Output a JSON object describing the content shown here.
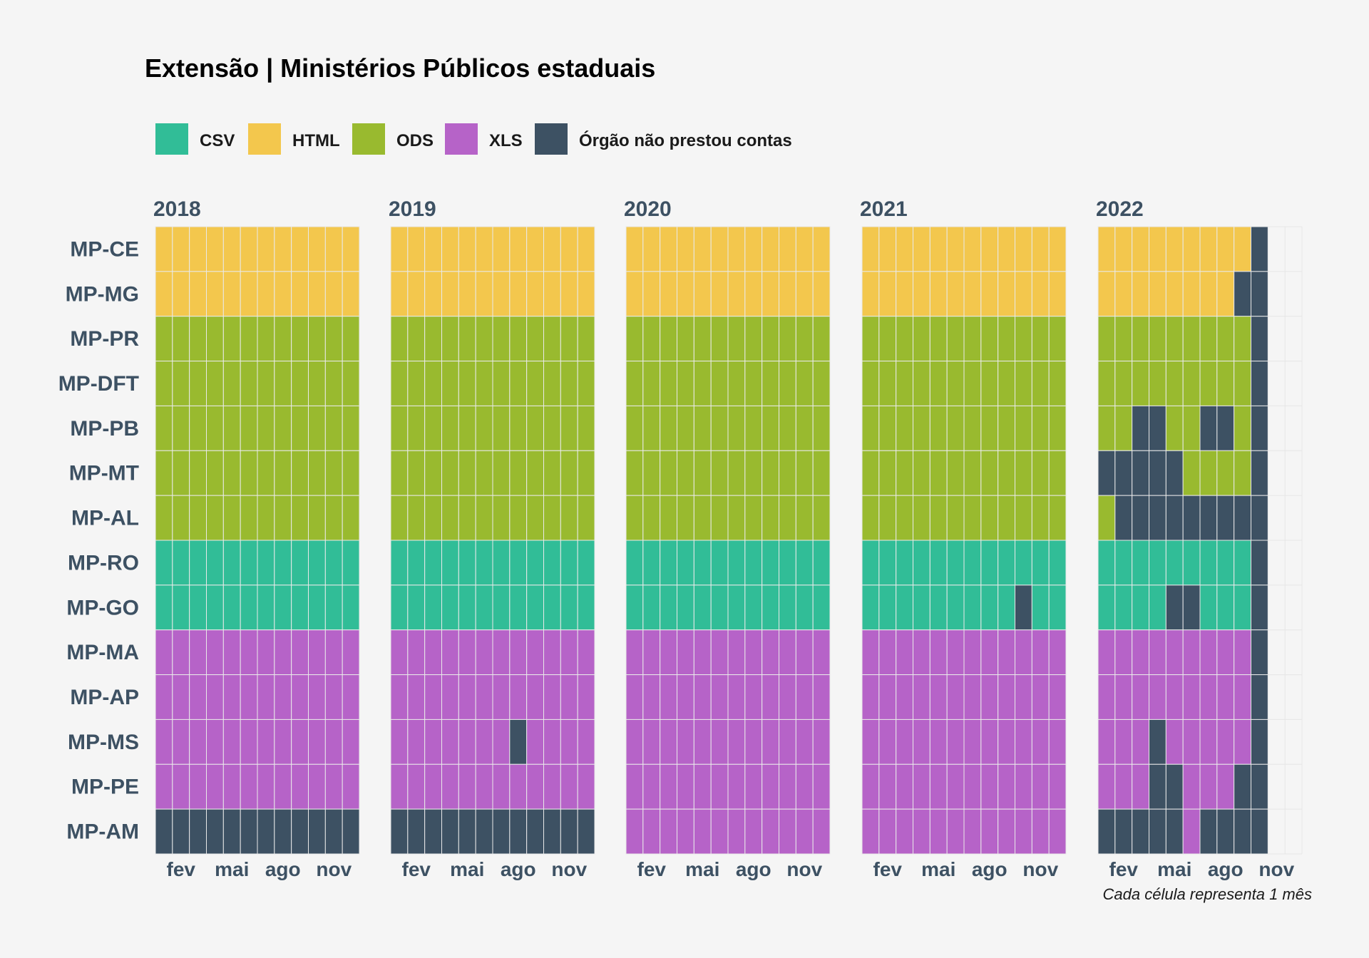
{
  "chart_data": {
    "type": "heatmap",
    "title": "Extensão | Ministérios Públicos estaduais",
    "caption": "Cada célula representa 1 mês",
    "legend": [
      {
        "key": "CSV",
        "label": "CSV",
        "color": "#31bd97"
      },
      {
        "key": "HTML",
        "label": "HTML",
        "color": "#f3c74d"
      },
      {
        "key": "ODS",
        "label": "ODS",
        "color": "#99ba2f"
      },
      {
        "key": "XLS",
        "label": "XLS",
        "color": "#b663c8"
      },
      {
        "key": "NA",
        "label": "Órgão não prestou contas",
        "color": "#3d5163"
      }
    ],
    "legend_position": "top",
    "months": [
      "jan",
      "fev",
      "mar",
      "abr",
      "mai",
      "jun",
      "jul",
      "ago",
      "set",
      "out",
      "nov",
      "dez"
    ],
    "month_tick_labels": [
      "fev",
      "mai",
      "ago",
      "nov"
    ],
    "rows": [
      "MP-CE",
      "MP-MG",
      "MP-PR",
      "MP-DFT",
      "MP-PB",
      "MP-MT",
      "MP-AL",
      "MP-RO",
      "MP-GO",
      "MP-MA",
      "MP-AP",
      "MP-MS",
      "MP-PE",
      "MP-AM"
    ],
    "panels": [
      {
        "year": "2018",
        "cells": [
          [
            "HTML",
            "HTML",
            "HTML",
            "HTML",
            "HTML",
            "HTML",
            "HTML",
            "HTML",
            "HTML",
            "HTML",
            "HTML",
            "HTML"
          ],
          [
            "HTML",
            "HTML",
            "HTML",
            "HTML",
            "HTML",
            "HTML",
            "HTML",
            "HTML",
            "HTML",
            "HTML",
            "HTML",
            "HTML"
          ],
          [
            "ODS",
            "ODS",
            "ODS",
            "ODS",
            "ODS",
            "ODS",
            "ODS",
            "ODS",
            "ODS",
            "ODS",
            "ODS",
            "ODS"
          ],
          [
            "ODS",
            "ODS",
            "ODS",
            "ODS",
            "ODS",
            "ODS",
            "ODS",
            "ODS",
            "ODS",
            "ODS",
            "ODS",
            "ODS"
          ],
          [
            "ODS",
            "ODS",
            "ODS",
            "ODS",
            "ODS",
            "ODS",
            "ODS",
            "ODS",
            "ODS",
            "ODS",
            "ODS",
            "ODS"
          ],
          [
            "ODS",
            "ODS",
            "ODS",
            "ODS",
            "ODS",
            "ODS",
            "ODS",
            "ODS",
            "ODS",
            "ODS",
            "ODS",
            "ODS"
          ],
          [
            "ODS",
            "ODS",
            "ODS",
            "ODS",
            "ODS",
            "ODS",
            "ODS",
            "ODS",
            "ODS",
            "ODS",
            "ODS",
            "ODS"
          ],
          [
            "CSV",
            "CSV",
            "CSV",
            "CSV",
            "CSV",
            "CSV",
            "CSV",
            "CSV",
            "CSV",
            "CSV",
            "CSV",
            "CSV"
          ],
          [
            "CSV",
            "CSV",
            "CSV",
            "CSV",
            "CSV",
            "CSV",
            "CSV",
            "CSV",
            "CSV",
            "CSV",
            "CSV",
            "CSV"
          ],
          [
            "XLS",
            "XLS",
            "XLS",
            "XLS",
            "XLS",
            "XLS",
            "XLS",
            "XLS",
            "XLS",
            "XLS",
            "XLS",
            "XLS"
          ],
          [
            "XLS",
            "XLS",
            "XLS",
            "XLS",
            "XLS",
            "XLS",
            "XLS",
            "XLS",
            "XLS",
            "XLS",
            "XLS",
            "XLS"
          ],
          [
            "XLS",
            "XLS",
            "XLS",
            "XLS",
            "XLS",
            "XLS",
            "XLS",
            "XLS",
            "XLS",
            "XLS",
            "XLS",
            "XLS"
          ],
          [
            "XLS",
            "XLS",
            "XLS",
            "XLS",
            "XLS",
            "XLS",
            "XLS",
            "XLS",
            "XLS",
            "XLS",
            "XLS",
            "XLS"
          ],
          [
            "NA",
            "NA",
            "NA",
            "NA",
            "NA",
            "NA",
            "NA",
            "NA",
            "NA",
            "NA",
            "NA",
            "NA"
          ]
        ]
      },
      {
        "year": "2019",
        "cells": [
          [
            "HTML",
            "HTML",
            "HTML",
            "HTML",
            "HTML",
            "HTML",
            "HTML",
            "HTML",
            "HTML",
            "HTML",
            "HTML",
            "HTML"
          ],
          [
            "HTML",
            "HTML",
            "HTML",
            "HTML",
            "HTML",
            "HTML",
            "HTML",
            "HTML",
            "HTML",
            "HTML",
            "HTML",
            "HTML"
          ],
          [
            "ODS",
            "ODS",
            "ODS",
            "ODS",
            "ODS",
            "ODS",
            "ODS",
            "ODS",
            "ODS",
            "ODS",
            "ODS",
            "ODS"
          ],
          [
            "ODS",
            "ODS",
            "ODS",
            "ODS",
            "ODS",
            "ODS",
            "ODS",
            "ODS",
            "ODS",
            "ODS",
            "ODS",
            "ODS"
          ],
          [
            "ODS",
            "ODS",
            "ODS",
            "ODS",
            "ODS",
            "ODS",
            "ODS",
            "ODS",
            "ODS",
            "ODS",
            "ODS",
            "ODS"
          ],
          [
            "ODS",
            "ODS",
            "ODS",
            "ODS",
            "ODS",
            "ODS",
            "ODS",
            "ODS",
            "ODS",
            "ODS",
            "ODS",
            "ODS"
          ],
          [
            "ODS",
            "ODS",
            "ODS",
            "ODS",
            "ODS",
            "ODS",
            "ODS",
            "ODS",
            "ODS",
            "ODS",
            "ODS",
            "ODS"
          ],
          [
            "CSV",
            "CSV",
            "CSV",
            "CSV",
            "CSV",
            "CSV",
            "CSV",
            "CSV",
            "CSV",
            "CSV",
            "CSV",
            "CSV"
          ],
          [
            "CSV",
            "CSV",
            "CSV",
            "CSV",
            "CSV",
            "CSV",
            "CSV",
            "CSV",
            "CSV",
            "CSV",
            "CSV",
            "CSV"
          ],
          [
            "XLS",
            "XLS",
            "XLS",
            "XLS",
            "XLS",
            "XLS",
            "XLS",
            "XLS",
            "XLS",
            "XLS",
            "XLS",
            "XLS"
          ],
          [
            "XLS",
            "XLS",
            "XLS",
            "XLS",
            "XLS",
            "XLS",
            "XLS",
            "XLS",
            "XLS",
            "XLS",
            "XLS",
            "XLS"
          ],
          [
            "XLS",
            "XLS",
            "XLS",
            "XLS",
            "XLS",
            "XLS",
            "XLS",
            "NA",
            "XLS",
            "XLS",
            "XLS",
            "XLS"
          ],
          [
            "XLS",
            "XLS",
            "XLS",
            "XLS",
            "XLS",
            "XLS",
            "XLS",
            "XLS",
            "XLS",
            "XLS",
            "XLS",
            "XLS"
          ],
          [
            "NA",
            "NA",
            "NA",
            "NA",
            "NA",
            "NA",
            "NA",
            "NA",
            "NA",
            "NA",
            "NA",
            "NA"
          ]
        ]
      },
      {
        "year": "2020",
        "cells": [
          [
            "HTML",
            "HTML",
            "HTML",
            "HTML",
            "HTML",
            "HTML",
            "HTML",
            "HTML",
            "HTML",
            "HTML",
            "HTML",
            "HTML"
          ],
          [
            "HTML",
            "HTML",
            "HTML",
            "HTML",
            "HTML",
            "HTML",
            "HTML",
            "HTML",
            "HTML",
            "HTML",
            "HTML",
            "HTML"
          ],
          [
            "ODS",
            "ODS",
            "ODS",
            "ODS",
            "ODS",
            "ODS",
            "ODS",
            "ODS",
            "ODS",
            "ODS",
            "ODS",
            "ODS"
          ],
          [
            "ODS",
            "ODS",
            "ODS",
            "ODS",
            "ODS",
            "ODS",
            "ODS",
            "ODS",
            "ODS",
            "ODS",
            "ODS",
            "ODS"
          ],
          [
            "ODS",
            "ODS",
            "ODS",
            "ODS",
            "ODS",
            "ODS",
            "ODS",
            "ODS",
            "ODS",
            "ODS",
            "ODS",
            "ODS"
          ],
          [
            "ODS",
            "ODS",
            "ODS",
            "ODS",
            "ODS",
            "ODS",
            "ODS",
            "ODS",
            "ODS",
            "ODS",
            "ODS",
            "ODS"
          ],
          [
            "ODS",
            "ODS",
            "ODS",
            "ODS",
            "ODS",
            "ODS",
            "ODS",
            "ODS",
            "ODS",
            "ODS",
            "ODS",
            "ODS"
          ],
          [
            "CSV",
            "CSV",
            "CSV",
            "CSV",
            "CSV",
            "CSV",
            "CSV",
            "CSV",
            "CSV",
            "CSV",
            "CSV",
            "CSV"
          ],
          [
            "CSV",
            "CSV",
            "CSV",
            "CSV",
            "CSV",
            "CSV",
            "CSV",
            "CSV",
            "CSV",
            "CSV",
            "CSV",
            "CSV"
          ],
          [
            "XLS",
            "XLS",
            "XLS",
            "XLS",
            "XLS",
            "XLS",
            "XLS",
            "XLS",
            "XLS",
            "XLS",
            "XLS",
            "XLS"
          ],
          [
            "XLS",
            "XLS",
            "XLS",
            "XLS",
            "XLS",
            "XLS",
            "XLS",
            "XLS",
            "XLS",
            "XLS",
            "XLS",
            "XLS"
          ],
          [
            "XLS",
            "XLS",
            "XLS",
            "XLS",
            "XLS",
            "XLS",
            "XLS",
            "XLS",
            "XLS",
            "XLS",
            "XLS",
            "XLS"
          ],
          [
            "XLS",
            "XLS",
            "XLS",
            "XLS",
            "XLS",
            "XLS",
            "XLS",
            "XLS",
            "XLS",
            "XLS",
            "XLS",
            "XLS"
          ],
          [
            "XLS",
            "XLS",
            "XLS",
            "XLS",
            "XLS",
            "XLS",
            "XLS",
            "XLS",
            "XLS",
            "XLS",
            "XLS",
            "XLS"
          ]
        ]
      },
      {
        "year": "2021",
        "cells": [
          [
            "HTML",
            "HTML",
            "HTML",
            "HTML",
            "HTML",
            "HTML",
            "HTML",
            "HTML",
            "HTML",
            "HTML",
            "HTML",
            "HTML"
          ],
          [
            "HTML",
            "HTML",
            "HTML",
            "HTML",
            "HTML",
            "HTML",
            "HTML",
            "HTML",
            "HTML",
            "HTML",
            "HTML",
            "HTML"
          ],
          [
            "ODS",
            "ODS",
            "ODS",
            "ODS",
            "ODS",
            "ODS",
            "ODS",
            "ODS",
            "ODS",
            "ODS",
            "ODS",
            "ODS"
          ],
          [
            "ODS",
            "ODS",
            "ODS",
            "ODS",
            "ODS",
            "ODS",
            "ODS",
            "ODS",
            "ODS",
            "ODS",
            "ODS",
            "ODS"
          ],
          [
            "ODS",
            "ODS",
            "ODS",
            "ODS",
            "ODS",
            "ODS",
            "ODS",
            "ODS",
            "ODS",
            "ODS",
            "ODS",
            "ODS"
          ],
          [
            "ODS",
            "ODS",
            "ODS",
            "ODS",
            "ODS",
            "ODS",
            "ODS",
            "ODS",
            "ODS",
            "ODS",
            "ODS",
            "ODS"
          ],
          [
            "ODS",
            "ODS",
            "ODS",
            "ODS",
            "ODS",
            "ODS",
            "ODS",
            "ODS",
            "ODS",
            "ODS",
            "ODS",
            "ODS"
          ],
          [
            "CSV",
            "CSV",
            "CSV",
            "CSV",
            "CSV",
            "CSV",
            "CSV",
            "CSV",
            "CSV",
            "CSV",
            "CSV",
            "CSV"
          ],
          [
            "CSV",
            "CSV",
            "CSV",
            "CSV",
            "CSV",
            "CSV",
            "CSV",
            "CSV",
            "CSV",
            "NA",
            "CSV",
            "CSV"
          ],
          [
            "XLS",
            "XLS",
            "XLS",
            "XLS",
            "XLS",
            "XLS",
            "XLS",
            "XLS",
            "XLS",
            "XLS",
            "XLS",
            "XLS"
          ],
          [
            "XLS",
            "XLS",
            "XLS",
            "XLS",
            "XLS",
            "XLS",
            "XLS",
            "XLS",
            "XLS",
            "XLS",
            "XLS",
            "XLS"
          ],
          [
            "XLS",
            "XLS",
            "XLS",
            "XLS",
            "XLS",
            "XLS",
            "XLS",
            "XLS",
            "XLS",
            "XLS",
            "XLS",
            "XLS"
          ],
          [
            "XLS",
            "XLS",
            "XLS",
            "XLS",
            "XLS",
            "XLS",
            "XLS",
            "XLS",
            "XLS",
            "XLS",
            "XLS",
            "XLS"
          ],
          [
            "XLS",
            "XLS",
            "XLS",
            "XLS",
            "XLS",
            "XLS",
            "XLS",
            "XLS",
            "XLS",
            "XLS",
            "XLS",
            "XLS"
          ]
        ]
      },
      {
        "year": "2022",
        "cells": [
          [
            "HTML",
            "HTML",
            "HTML",
            "HTML",
            "HTML",
            "HTML",
            "HTML",
            "HTML",
            "HTML",
            "NA",
            null,
            null
          ],
          [
            "HTML",
            "HTML",
            "HTML",
            "HTML",
            "HTML",
            "HTML",
            "HTML",
            "HTML",
            "NA",
            "NA",
            null,
            null
          ],
          [
            "ODS",
            "ODS",
            "ODS",
            "ODS",
            "ODS",
            "ODS",
            "ODS",
            "ODS",
            "ODS",
            "NA",
            null,
            null
          ],
          [
            "ODS",
            "ODS",
            "ODS",
            "ODS",
            "ODS",
            "ODS",
            "ODS",
            "ODS",
            "ODS",
            "NA",
            null,
            null
          ],
          [
            "ODS",
            "ODS",
            "NA",
            "NA",
            "ODS",
            "ODS",
            "NA",
            "NA",
            "ODS",
            "NA",
            null,
            null
          ],
          [
            "NA",
            "NA",
            "NA",
            "NA",
            "NA",
            "ODS",
            "ODS",
            "ODS",
            "ODS",
            "NA",
            null,
            null
          ],
          [
            "ODS",
            "NA",
            "NA",
            "NA",
            "NA",
            "NA",
            "NA",
            "NA",
            "NA",
            "NA",
            null,
            null
          ],
          [
            "CSV",
            "CSV",
            "CSV",
            "CSV",
            "CSV",
            "CSV",
            "CSV",
            "CSV",
            "CSV",
            "NA",
            null,
            null
          ],
          [
            "CSV",
            "CSV",
            "CSV",
            "CSV",
            "NA",
            "NA",
            "CSV",
            "CSV",
            "CSV",
            "NA",
            null,
            null
          ],
          [
            "XLS",
            "XLS",
            "XLS",
            "XLS",
            "XLS",
            "XLS",
            "XLS",
            "XLS",
            "XLS",
            "NA",
            null,
            null
          ],
          [
            "XLS",
            "XLS",
            "XLS",
            "XLS",
            "XLS",
            "XLS",
            "XLS",
            "XLS",
            "XLS",
            "NA",
            null,
            null
          ],
          [
            "XLS",
            "XLS",
            "XLS",
            "NA",
            "XLS",
            "XLS",
            "XLS",
            "XLS",
            "XLS",
            "NA",
            null,
            null
          ],
          [
            "XLS",
            "XLS",
            "XLS",
            "NA",
            "NA",
            "XLS",
            "XLS",
            "XLS",
            "NA",
            "NA",
            null,
            null
          ],
          [
            "NA",
            "NA",
            "NA",
            "NA",
            "NA",
            "XLS",
            "NA",
            "NA",
            "NA",
            "NA",
            null,
            null
          ]
        ]
      }
    ]
  }
}
